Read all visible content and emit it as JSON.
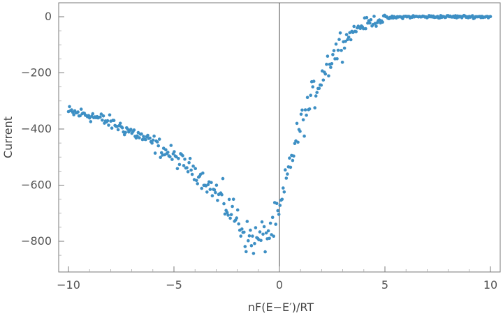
{
  "chart_data": {
    "type": "scatter",
    "xlabel": "nF(E−E′)/RT",
    "ylabel": "Current",
    "xlim": [
      -10,
      10
    ],
    "ylim": [
      -900,
      50
    ],
    "x_ticks": [
      -10,
      -5,
      0,
      5,
      10
    ],
    "y_ticks": [
      0,
      -200,
      -400,
      -600,
      -800
    ],
    "x_tick_labels": [
      "−10",
      "−5",
      "0",
      "5",
      "10"
    ],
    "y_tick_labels": [
      "0",
      "−200",
      "−400",
      "−600",
      "−800"
    ],
    "grid": false,
    "frame": true,
    "vertical_reference_line_x": 0,
    "marker_color": "#3d8fc4",
    "point_count": 400,
    "series": [
      {
        "x_range": [
          -10,
          10
        ],
        "trend": [
          [
            -10,
            -340
          ],
          [
            -9,
            -350
          ],
          [
            -8,
            -378
          ],
          [
            -7,
            -410
          ],
          [
            -6,
            -450
          ],
          [
            -5,
            -500
          ],
          [
            -4,
            -550
          ],
          [
            -3,
            -628
          ],
          [
            -2,
            -720
          ],
          [
            -1.5,
            -790
          ],
          [
            -1,
            -795
          ],
          [
            -0.5,
            -770
          ],
          [
            0,
            -705
          ],
          [
            0.5,
            -520
          ],
          [
            1,
            -390
          ],
          [
            1.5,
            -300
          ],
          [
            2,
            -210
          ],
          [
            2.5,
            -140
          ],
          [
            3,
            -90
          ],
          [
            3.5,
            -50
          ],
          [
            4,
            -28
          ],
          [
            4.5,
            -15
          ],
          [
            5,
            -5
          ],
          [
            6,
            0
          ],
          [
            7,
            0
          ],
          [
            8,
            0
          ],
          [
            10,
            0
          ]
        ]
      }
    ]
  }
}
